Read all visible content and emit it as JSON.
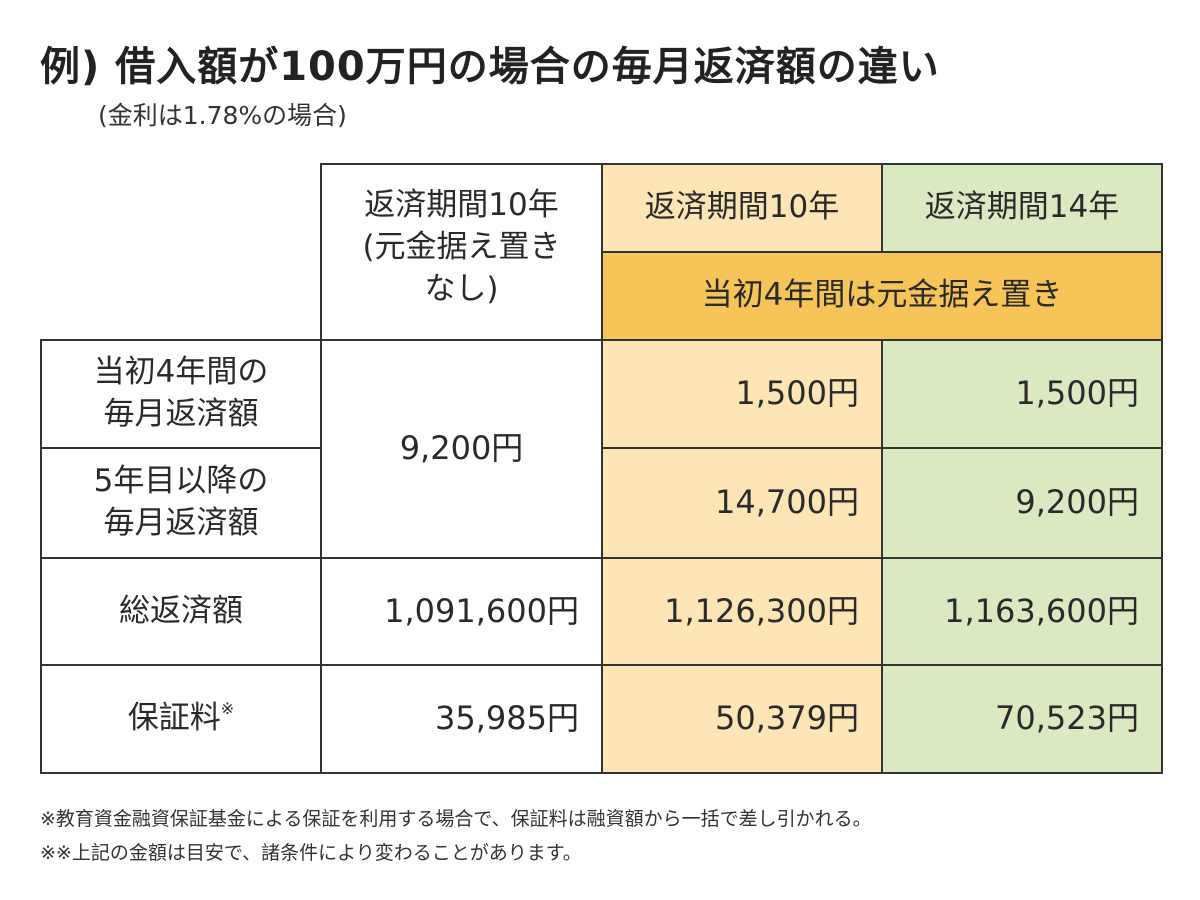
{
  "title": "例) 借入額が100万円の場合の毎月返済額の違い",
  "subtitle": "(金利は1.78%の場合)",
  "table": {
    "col_headers": [
      "返済期間10年\n(元金据え置き\nなし)",
      "返済期間10年",
      "返済期間14年"
    ],
    "deferral_banner": "当初4年間は元金据え置き",
    "rows": [
      {
        "label": "当初4年間の\n毎月返済額",
        "values": [
          "9,200円",
          "1,500円",
          "1,500円"
        ]
      },
      {
        "label": "5年目以降の\n毎月返済額",
        "values": [
          "",
          "14,700円",
          "9,200円"
        ]
      },
      {
        "label": "総返済額",
        "values": [
          "1,091,600円",
          "1,126,300円",
          "1,163,600円"
        ]
      },
      {
        "label": "保証料",
        "label_mark": "※",
        "values": [
          "35,985円",
          "50,379円",
          "70,523円"
        ]
      }
    ]
  },
  "footnotes": [
    "※教育資金融資保証基金による保証を利用する場合で、保証料は融資額から一括で差し引かれる。",
    "※※上記の金額は目安で、諸条件により変わることがあります。"
  ],
  "colors": {
    "orange_column": "#fde5b6",
    "green_column": "#dbe9c3",
    "deferral_banner": "#f7c45a",
    "border": "#333333"
  }
}
